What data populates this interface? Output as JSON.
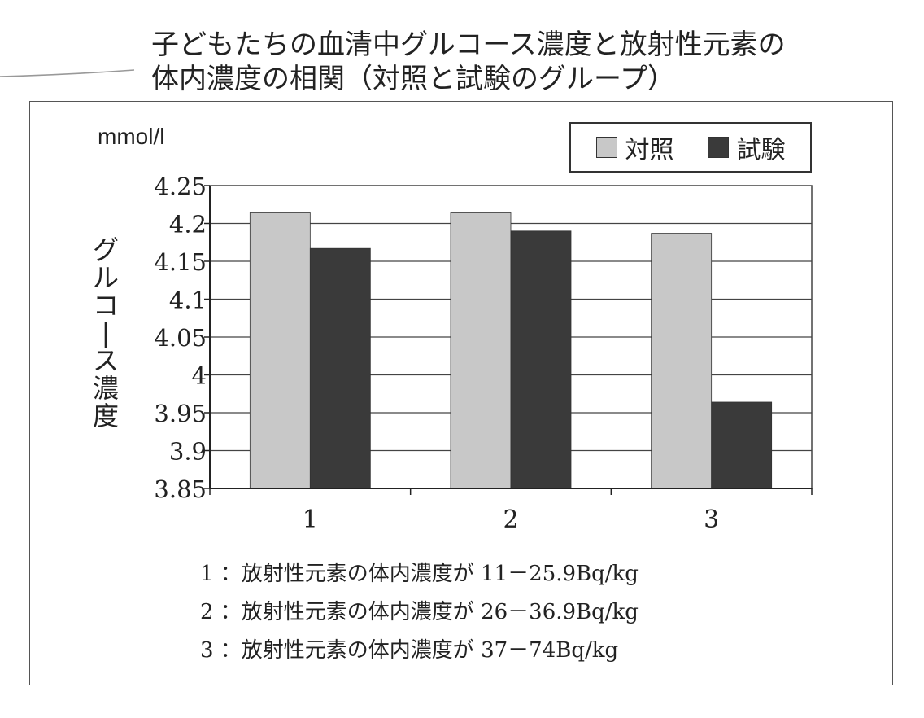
{
  "title_lines": [
    "子どもたちの血清中グルコース濃度と放射性元素の",
    "体内濃度の相関（対照と試験のグループ）"
  ],
  "colors": {
    "control": "#c8c8c8",
    "test": "#3a3a3a",
    "grid": "#444444",
    "axis": "#222222"
  },
  "chart_data": {
    "type": "bar",
    "title": "子どもたちの血清中グルコース濃度と放射性元素の体内濃度の相関（対照と試験のグループ）",
    "unit_label": "mmol/l",
    "ylabel": "グルコース濃度",
    "xlabel": "",
    "categories": [
      "1",
      "2",
      "3"
    ],
    "series": [
      {
        "name": "対照",
        "values": [
          4.214,
          4.214,
          4.187
        ]
      },
      {
        "name": "試験",
        "values": [
          4.167,
          4.19,
          3.964
        ]
      }
    ],
    "ylim": [
      3.85,
      4.25
    ],
    "yticks": [
      "4.25",
      "4.2",
      "4.15",
      "4.1",
      "4.05",
      "4",
      "3.95",
      "3.9",
      "3.85"
    ],
    "grid": true,
    "legend_position": "top-right"
  },
  "notes": [
    "1 ：放射性元素の体内濃度が 11－25.9Bq/kg",
    "2 ：放射性元素の体内濃度が 26－36.9Bq/kg",
    "3 ：放射性元素の体内濃度が 37－74Bq/kg"
  ]
}
